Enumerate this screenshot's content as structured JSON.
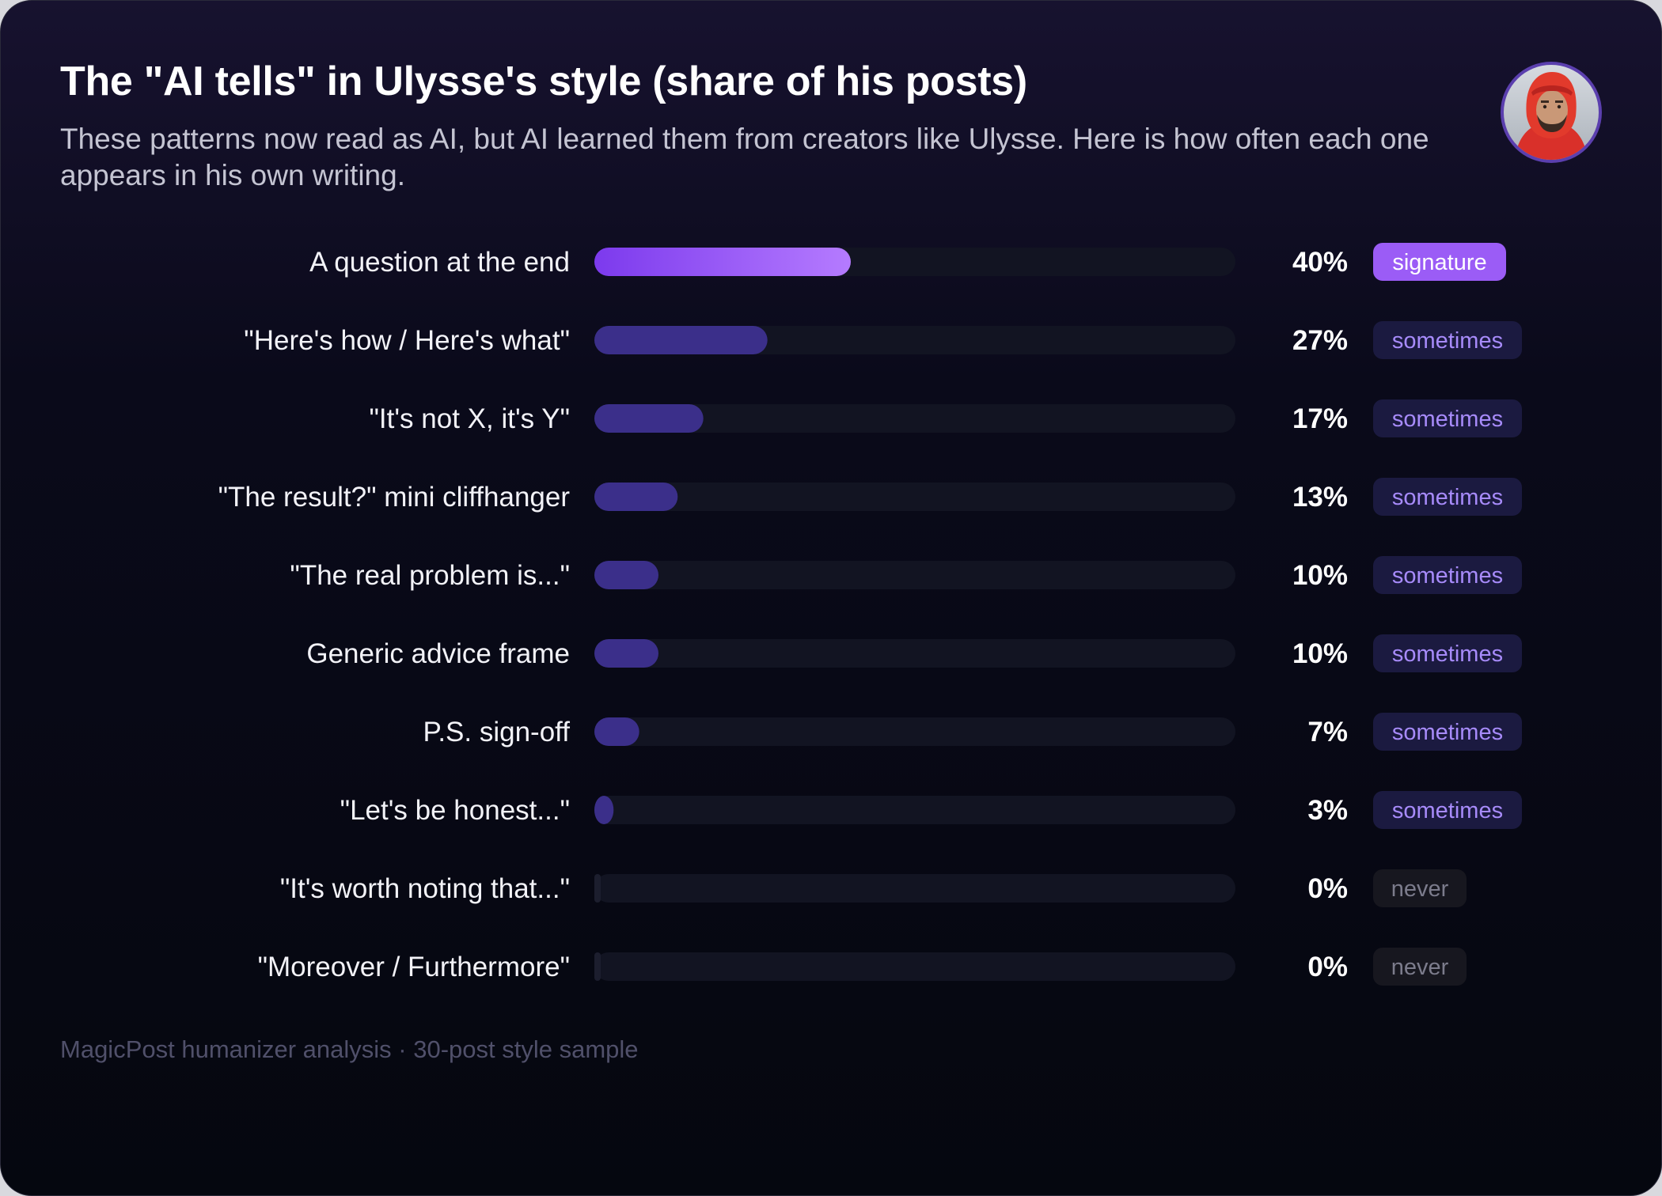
{
  "title": "The \"AI tells\" in Ulysse's style (share of his posts)",
  "subtitle": "These patterns now read as AI, but AI learned them from creators like Ulysse. Here is how often each one appears in his own writing.",
  "footer": "MagicPost humanizer analysis · 30-post style sample",
  "colors": {
    "accent_start": "#7c3aed",
    "accent_end": "#b57bff",
    "bar_default": "#3b2f8a",
    "track": "#121422",
    "badge_signature_bg": "#9b5cf6",
    "badge_sometimes_bg": "#1b1a40",
    "badge_sometimes_text": "#a78bfa",
    "badge_never_bg": "#17171f",
    "badge_never_text": "#7c7c8c"
  },
  "chart_data": {
    "type": "bar",
    "orientation": "horizontal",
    "categories": [
      "A question at the end",
      "\"Here's how / Here's what\"",
      "\"It's not X, it's Y\"",
      "\"The result?\" mini cliffhanger",
      "\"The real problem is...\"",
      "Generic advice frame",
      "P.S. sign-off",
      "\"Let's be honest...\"",
      "\"It's worth noting that...\"",
      "\"Moreover / Furthermore\""
    ],
    "values": [
      40,
      27,
      17,
      13,
      10,
      10,
      7,
      3,
      0,
      0
    ],
    "value_labels": [
      "40%",
      "27%",
      "17%",
      "13%",
      "10%",
      "10%",
      "7%",
      "3%",
      "0%",
      "0%"
    ],
    "badges": [
      "signature",
      "sometimes",
      "sometimes",
      "sometimes",
      "sometimes",
      "sometimes",
      "sometimes",
      "sometimes",
      "never",
      "never"
    ],
    "xlim": [
      0,
      100
    ],
    "grid": false
  }
}
